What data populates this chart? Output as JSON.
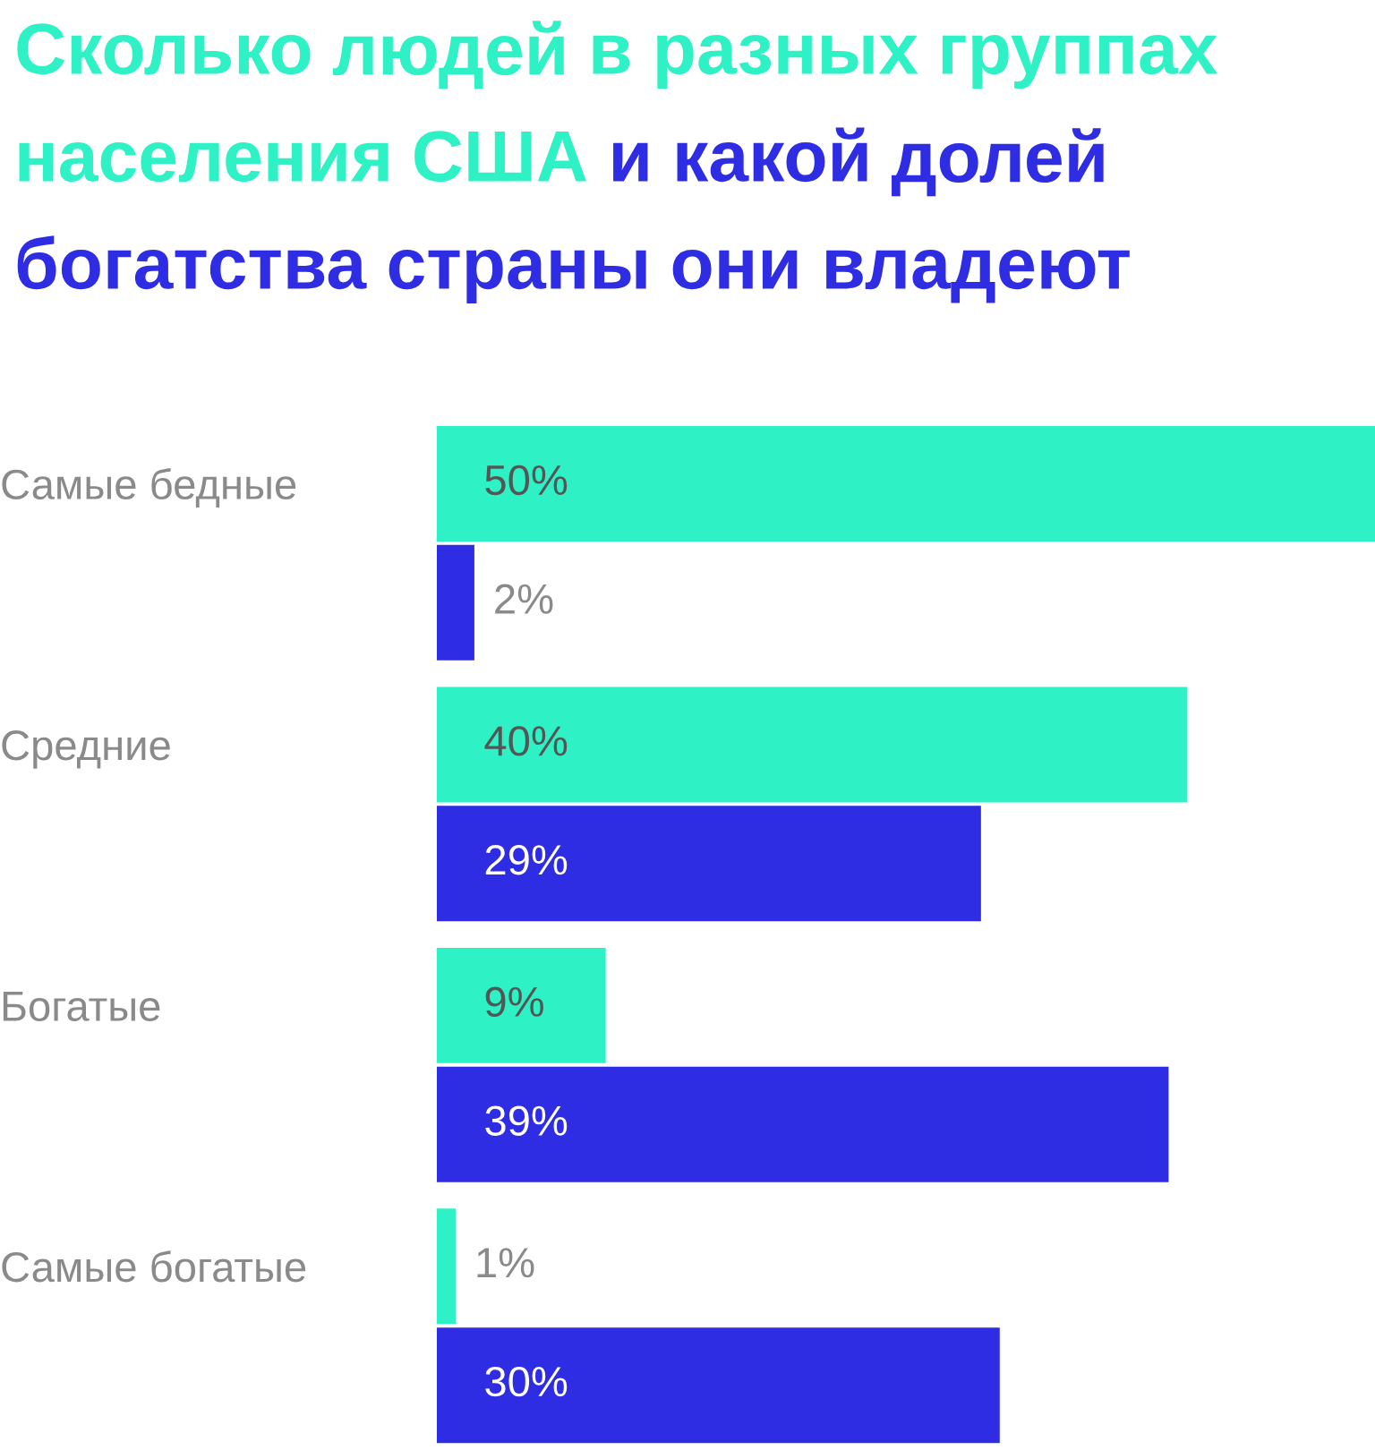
{
  "chart_data": {
    "type": "bar",
    "orientation": "horizontal",
    "title": "Сколько людей в разных группах населения США",
    "subtitle": "и какой долей богатства страны они владеют",
    "categories": [
      "Самые бедные",
      "Средние",
      "Богатые",
      "Самые богатые"
    ],
    "series": [
      {
        "color": "#2ef2c5",
        "values": [
          50,
          40,
          9,
          1
        ],
        "value_labels": [
          "50%",
          "40%",
          "9%",
          "1%"
        ]
      },
      {
        "color": "#2f2de3",
        "values": [
          2,
          29,
          39,
          30
        ],
        "value_labels": [
          "2%",
          "29%",
          "39%",
          "30%"
        ]
      }
    ],
    "xlim": [
      0,
      50
    ],
    "tick_labels": "y",
    "grid": false,
    "legend": false
  }
}
